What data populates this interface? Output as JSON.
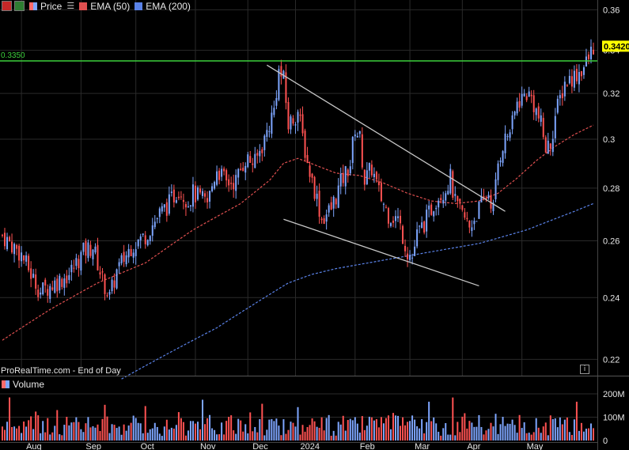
{
  "legend": {
    "price_label": "Price",
    "ema50_label": "EMA (50)",
    "ema200_label": "EMA (200)",
    "volume_label": "Volume",
    "source_label": "ProRealTime.com - End of Day"
  },
  "colors": {
    "up": "#7ea6ff",
    "down": "#ff5252",
    "ema50": "#e05050",
    "ema200": "#5a82e8",
    "level": "#3ccf3c",
    "trend": "#c8c8c8",
    "grid": "#2a2a2a",
    "price_tag_bg": "#ffff00"
  },
  "chart_data": {
    "type": "candlestick",
    "y_axis": {
      "min": 0.215,
      "max": 0.365,
      "scale": "log",
      "ticks": [
        "0.22",
        "0.24",
        "0.26",
        "0.28",
        "0.3",
        "0.32",
        "0.34",
        "0.36"
      ]
    },
    "x_axis": {
      "labels": [
        "Aug",
        "Sep",
        "Oct",
        "Nov",
        "Dec",
        "2024",
        "Feb",
        "Mar",
        "Apr",
        "May"
      ]
    },
    "last_price": "0.3420",
    "horizontal_level": {
      "value": 0.335,
      "label": "0.3350"
    },
    "price_close_path": [
      [
        0,
        0.262
      ],
      [
        8,
        0.255
      ],
      [
        12,
        0.248
      ],
      [
        16,
        0.242
      ],
      [
        22,
        0.245
      ],
      [
        28,
        0.248
      ],
      [
        34,
        0.256
      ],
      [
        38,
        0.258
      ],
      [
        42,
        0.246
      ],
      [
        45,
        0.24
      ],
      [
        48,
        0.249
      ],
      [
        54,
        0.258
      ],
      [
        60,
        0.262
      ],
      [
        66,
        0.27
      ],
      [
        70,
        0.274
      ],
      [
        74,
        0.28
      ],
      [
        78,
        0.275
      ],
      [
        80,
        0.278
      ],
      [
        86,
        0.274
      ],
      [
        90,
        0.288
      ],
      [
        94,
        0.282
      ],
      [
        98,
        0.283
      ],
      [
        102,
        0.292
      ],
      [
        106,
        0.29
      ],
      [
        110,
        0.3
      ],
      [
        114,
        0.313
      ],
      [
        116,
        0.33
      ],
      [
        118,
        0.326
      ],
      [
        120,
        0.306
      ],
      [
        124,
        0.312
      ],
      [
        128,
        0.29
      ],
      [
        132,
        0.276
      ],
      [
        134,
        0.268
      ],
      [
        138,
        0.272
      ],
      [
        142,
        0.282
      ],
      [
        146,
        0.29
      ],
      [
        148,
        0.305
      ],
      [
        150,
        0.3
      ],
      [
        152,
        0.283
      ],
      [
        155,
        0.288
      ],
      [
        158,
        0.278
      ],
      [
        162,
        0.27
      ],
      [
        166,
        0.268
      ],
      [
        168,
        0.262
      ],
      [
        170,
        0.256
      ],
      [
        172,
        0.254
      ],
      [
        174,
        0.262
      ],
      [
        178,
        0.268
      ],
      [
        182,
        0.276
      ],
      [
        186,
        0.28
      ],
      [
        188,
        0.284
      ],
      [
        190,
        0.274
      ],
      [
        194,
        0.268
      ],
      [
        196,
        0.265
      ],
      [
        200,
        0.272
      ],
      [
        204,
        0.278
      ],
      [
        206,
        0.272
      ],
      [
        208,
        0.29
      ],
      [
        210,
        0.298
      ],
      [
        214,
        0.306
      ],
      [
        216,
        0.316
      ],
      [
        220,
        0.32
      ],
      [
        222,
        0.318
      ],
      [
        226,
        0.306
      ],
      [
        228,
        0.296
      ],
      [
        230,
        0.298
      ],
      [
        232,
        0.31
      ],
      [
        236,
        0.325
      ],
      [
        240,
        0.328
      ],
      [
        244,
        0.332
      ],
      [
        246,
        0.336
      ],
      [
        248,
        0.342
      ]
    ],
    "ema50_path": [
      [
        0,
        0.226
      ],
      [
        20,
        0.236
      ],
      [
        40,
        0.245
      ],
      [
        60,
        0.252
      ],
      [
        80,
        0.264
      ],
      [
        100,
        0.274
      ],
      [
        112,
        0.283
      ],
      [
        118,
        0.29
      ],
      [
        124,
        0.292
      ],
      [
        132,
        0.289
      ],
      [
        140,
        0.286
      ],
      [
        150,
        0.285
      ],
      [
        160,
        0.282
      ],
      [
        170,
        0.278
      ],
      [
        180,
        0.275
      ],
      [
        190,
        0.274
      ],
      [
        200,
        0.275
      ],
      [
        208,
        0.278
      ],
      [
        216,
        0.284
      ],
      [
        224,
        0.291
      ],
      [
        232,
        0.297
      ],
      [
        240,
        0.302
      ],
      [
        248,
        0.306
      ]
    ],
    "ema200_path": [
      [
        50,
        0.214
      ],
      [
        70,
        0.222
      ],
      [
        90,
        0.23
      ],
      [
        110,
        0.24
      ],
      [
        120,
        0.245
      ],
      [
        130,
        0.248
      ],
      [
        140,
        0.25
      ],
      [
        160,
        0.253
      ],
      [
        180,
        0.256
      ],
      [
        200,
        0.259
      ],
      [
        220,
        0.264
      ],
      [
        240,
        0.271
      ],
      [
        248,
        0.274
      ]
    ],
    "trendlines": [
      {
        "from": [
          111,
          0.333
        ],
        "to": [
          211,
          0.271
        ]
      },
      {
        "from": [
          118,
          0.268
        ],
        "to": [
          200,
          0.244
        ]
      }
    ],
    "volume_axis": {
      "ticks": [
        "200M",
        "100M",
        "0"
      ]
    }
  }
}
